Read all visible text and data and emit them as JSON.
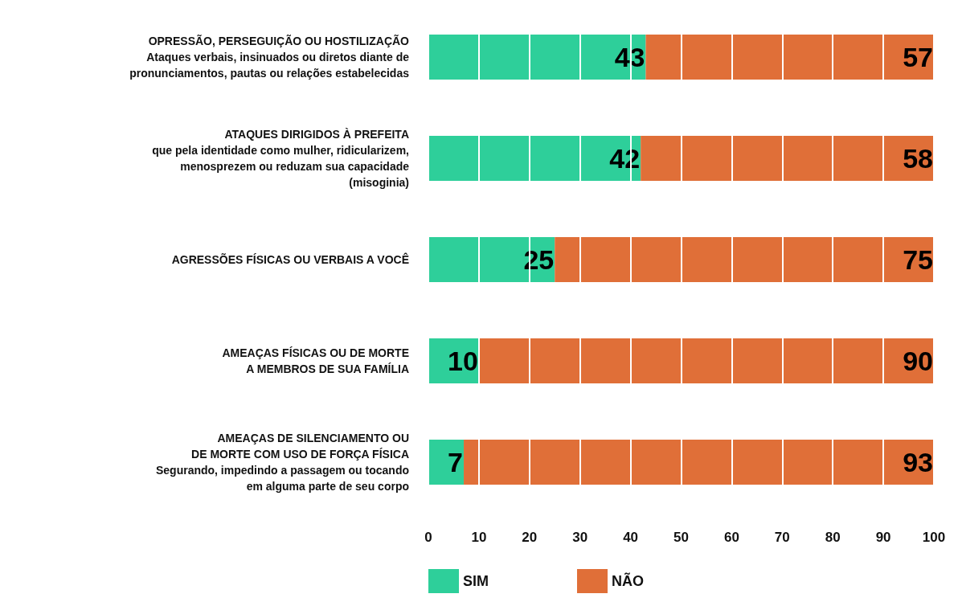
{
  "chart_data": {
    "type": "bar",
    "orientation": "horizontal",
    "stacked": true,
    "categories": [
      "OPRESSÃO, PERSEGUIÇÃO OU HOSTILIZAÇÃO\nAtaques verbais, insinuados ou diretos diante de\npronunciamentos, pautas ou relações estabelecidas",
      "ATAQUES DIRIGIDOS À PREFEITA\nque pela identidade como mulher, ridicularizem,\nmenosprezem ou reduzam sua capacidade\n(misoginia)",
      "AGRESSÕES FÍSICAS OU VERBAIS A VOCÊ",
      "AMEAÇAS FÍSICAS OU DE MORTE\nA MEMBROS DE SUA FAMÍLIA",
      "AMEAÇAS DE SILENCIAMENTO OU\nDE MORTE COM USO DE FORÇA FÍSICA\nSegurando, impedindo a passagem ou tocando\nem alguma parte de seu corpo"
    ],
    "series": [
      {
        "name": "SIM",
        "color": "#2ecf9a",
        "values": [
          43,
          42,
          25,
          10,
          7
        ]
      },
      {
        "name": "NÃO",
        "color": "#e06f38",
        "values": [
          57,
          58,
          75,
          90,
          93
        ]
      }
    ],
    "xlim": [
      0,
      100
    ],
    "xticks": [
      0,
      10,
      20,
      30,
      40,
      50,
      60,
      70,
      80,
      90,
      100
    ],
    "grid": "x",
    "legend": "bottom",
    "data_labels": true
  }
}
